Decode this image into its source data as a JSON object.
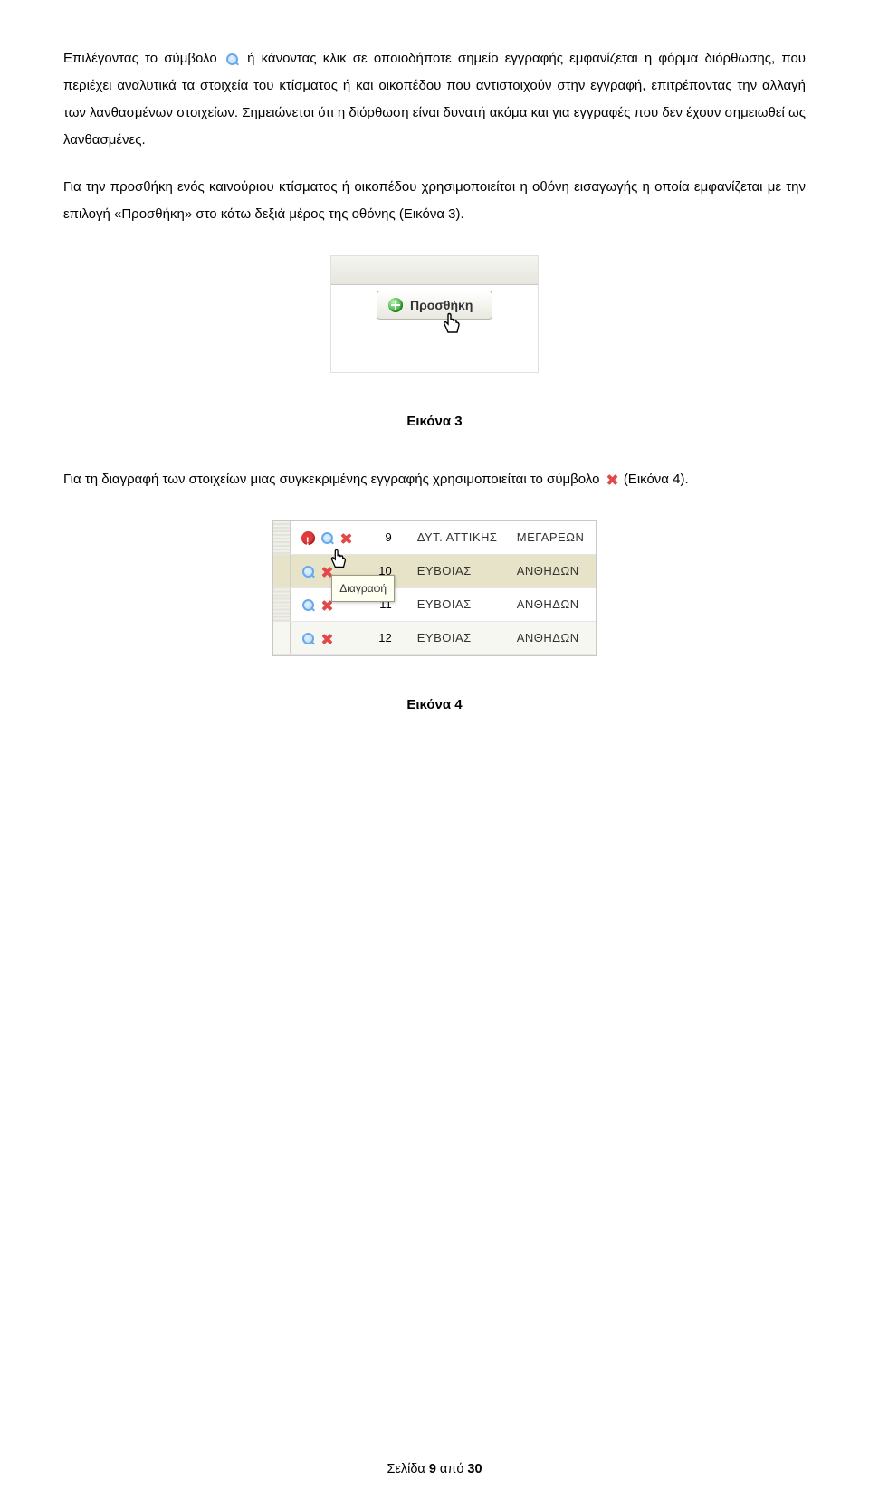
{
  "para1": {
    "t1": "Επιλέγοντας το σύμβολο ",
    "t2": "ή κάνοντας κλικ σε οποιοδήποτε σημείο εγγραφής εμφανίζεται η φόρμα διόρθωσης, που περιέχει αναλυτικά τα στοιχεία του κτίσματος ή και οικοπέδου που αντιστοιχούν στην εγγραφή, επιτρέποντας την αλλαγή των λανθασμένων στοιχείων. Σημειώνεται ότι η διόρθωση είναι δυνατή ακόμα και για εγγραφές που δεν έχουν σημειωθεί ως λανθασμένες."
  },
  "para2": "Για την προσθήκη ενός καινούριου κτίσματος ή οικοπέδου χρησιμοποιείται η οθόνη εισαγωγής η οποία εμφανίζεται με την επιλογή «Προσθήκη» στο κάτω δεξιά μέρος της οθόνης (Εικόνα 3).",
  "fig3": {
    "button_label": "Προσθήκη",
    "caption": "Εικόνα 3",
    "bg_light": "#ffffff",
    "btn_border": "#b9b9b0"
  },
  "para3": {
    "t1": "Για τη διαγραφή των στοιχείων μιας συγκεκριμένης εγγραφής χρησιμοποιείται το σύμβολο ",
    "t2": "(Εικόνα 4)."
  },
  "fig4": {
    "tooltip": "Διαγραφή",
    "caption": "Εικόνα 4",
    "rows": [
      {
        "num": "9",
        "region": "ΔΥΤ. ΑΤΤΙΚΗΣ",
        "muni": "ΜΕΓΑΡΕΩΝ",
        "warn": true
      },
      {
        "num": "10",
        "region": "ΕΥΒΟΙΑΣ",
        "muni": "ΑΝΘΗΔΩΝ"
      },
      {
        "num": "11",
        "region": "ΕΥΒΟΙΑΣ",
        "muni": "ΑΝΘΗΔΩΝ"
      },
      {
        "num": "12",
        "region": "ΕΥΒΟΙΑΣ",
        "muni": "ΑΝΘΗΔΩΝ"
      }
    ],
    "colors": {
      "row_alt": "#f7f7f2",
      "row_sel": "#e6e3c8",
      "border": "#e5e5e5",
      "delete": "#e24a4a",
      "mag": "#6aa9e8",
      "warn": "#e23b3b"
    }
  },
  "footer": {
    "pre": "Σελίδα ",
    "page": "9",
    "mid": " από ",
    "total": "30"
  }
}
